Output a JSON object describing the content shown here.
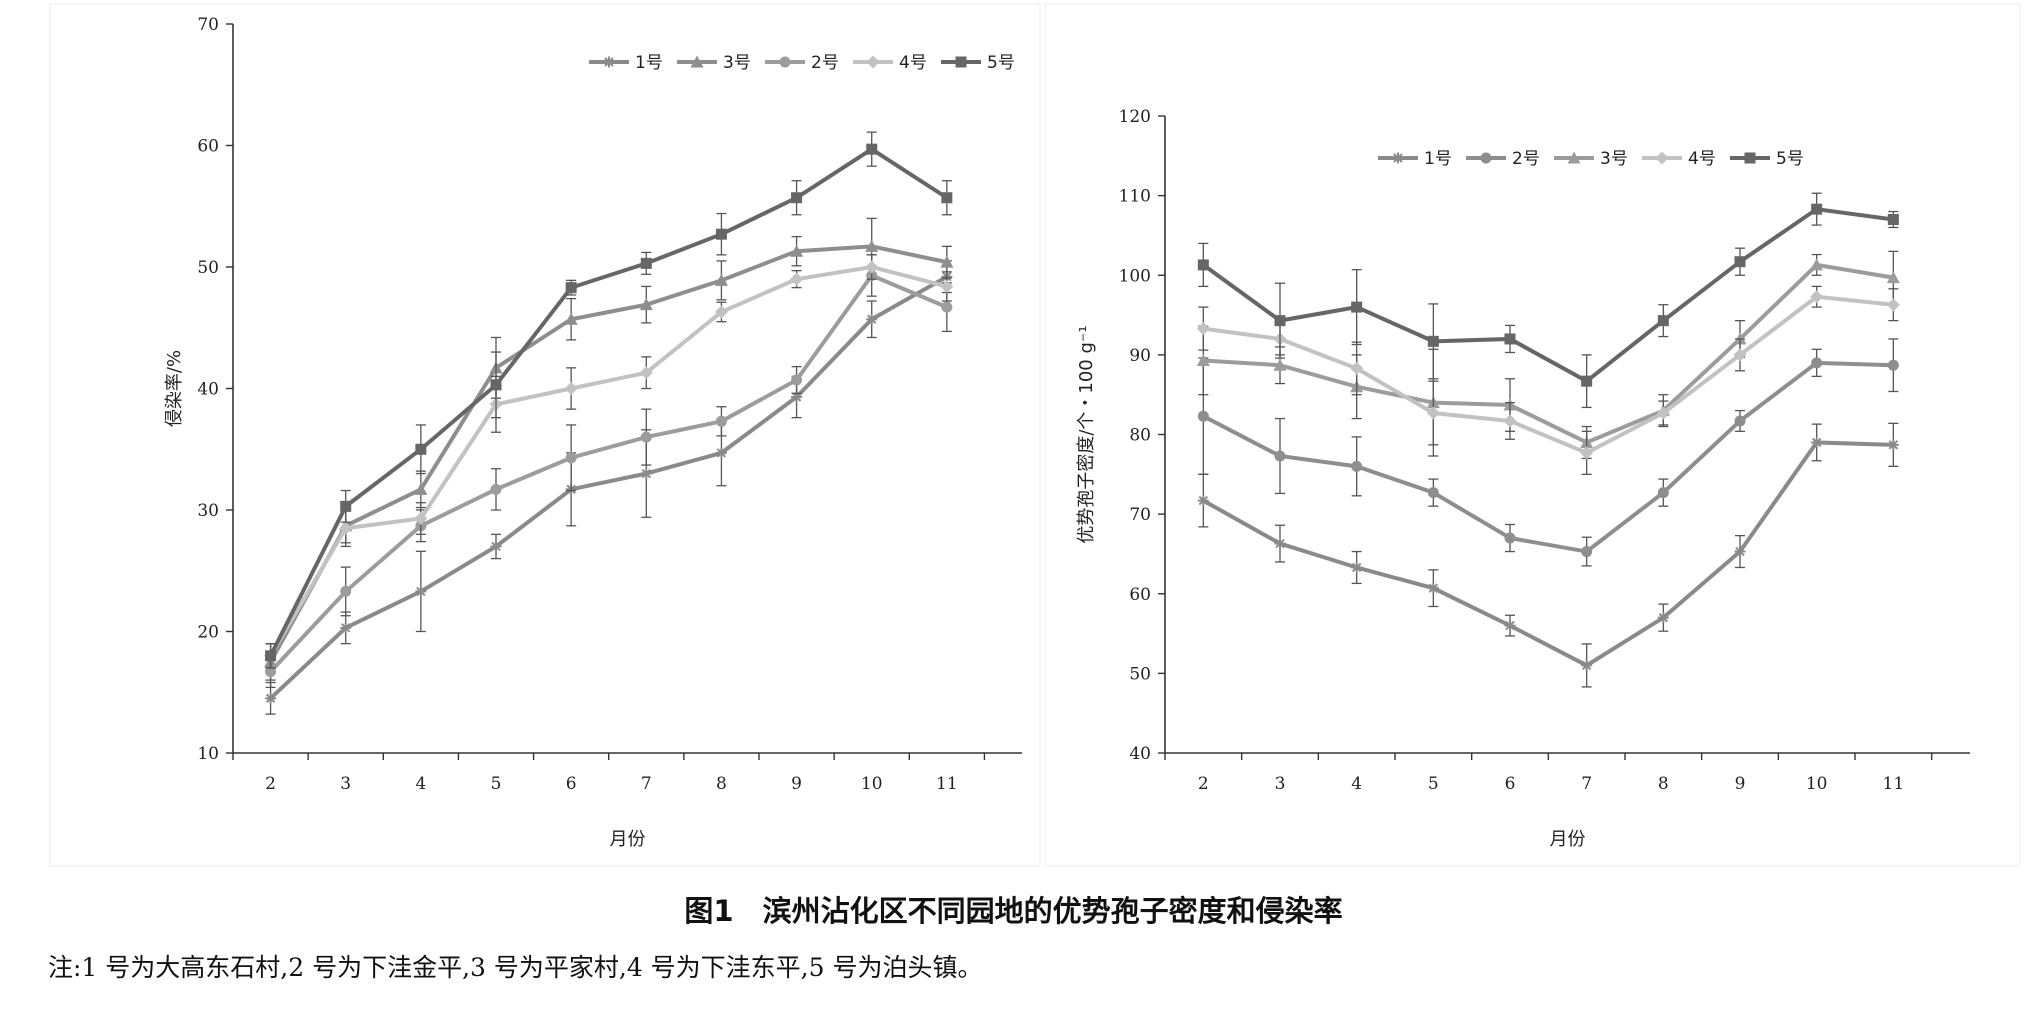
{
  "figure": {
    "caption": "图1　滨州沾化区不同园地的优势孢子密度和侵染率",
    "note": "注:1 号为大高东石村,2 号为下洼金平,3 号为平家村,4 号为下洼东平,5 号为泊头镇。"
  },
  "chart_data": [
    {
      "type": "line",
      "title": "",
      "xlabel": "月份",
      "ylabel": "侵染率/%",
      "ylim": [
        10,
        70
      ],
      "yticks": [
        10,
        20,
        30,
        40,
        50,
        60,
        70
      ],
      "x": [
        2,
        3,
        4,
        5,
        6,
        7,
        8,
        9,
        10,
        11
      ],
      "legend_position": "top-right",
      "series": [
        {
          "name": "1号",
          "marker": "star",
          "color": "#8a8a8a",
          "values": [
            14.5,
            20.3,
            23.3,
            27.0,
            31.7,
            33.0,
            34.7,
            39.3,
            45.7,
            49.2
          ],
          "errors": [
            1.3,
            1.3,
            3.3,
            1.0,
            3.0,
            3.6,
            2.7,
            1.7,
            1.5,
            1.3
          ]
        },
        {
          "name": "3号",
          "marker": "triangle",
          "color": "#8e8e8e",
          "values": [
            17.5,
            28.7,
            31.7,
            41.7,
            45.7,
            46.9,
            48.9,
            51.3,
            51.7,
            50.4
          ],
          "errors": [
            1.5,
            1.4,
            1.5,
            2.5,
            1.7,
            1.5,
            1.6,
            1.2,
            2.3,
            1.3
          ]
        },
        {
          "name": "2号",
          "marker": "circle",
          "color": "#9c9c9c",
          "values": [
            16.7,
            23.3,
            28.7,
            31.7,
            34.3,
            36.0,
            37.3,
            40.7,
            49.3,
            46.7
          ],
          "errors": [
            1.3,
            2.0,
            1.3,
            1.7,
            2.7,
            2.3,
            1.2,
            1.1,
            1.7,
            2.0
          ]
        },
        {
          "name": "4号",
          "marker": "diamond",
          "color": "#c2c2c2",
          "values": [
            18.0,
            28.5,
            29.3,
            38.7,
            40.0,
            41.3,
            46.3,
            49.0,
            50.0,
            48.4
          ],
          "errors": [
            1.0,
            1.5,
            1.3,
            2.3,
            1.7,
            1.3,
            0.8,
            0.7,
            1.0,
            1.2
          ]
        },
        {
          "name": "5号",
          "marker": "square",
          "color": "#666666",
          "values": [
            18.0,
            30.3,
            35.0,
            40.3,
            48.3,
            50.3,
            52.7,
            55.7,
            59.7,
            55.7
          ],
          "errors": [
            1.0,
            1.3,
            2.0,
            2.7,
            0.6,
            0.9,
            1.7,
            1.4,
            1.4,
            1.4
          ]
        }
      ]
    },
    {
      "type": "line",
      "title": "",
      "xlabel": "月份",
      "ylabel": "优势孢子密度/个・100 g⁻¹",
      "ylim": [
        40,
        120
      ],
      "yticks": [
        40,
        50,
        60,
        70,
        80,
        90,
        100,
        110,
        120
      ],
      "x": [
        2,
        3,
        4,
        5,
        6,
        7,
        8,
        9,
        10,
        11
      ],
      "legend_position": "top-left",
      "series": [
        {
          "name": "1号",
          "marker": "star",
          "color": "#8a8a8a",
          "values": [
            71.7,
            66.3,
            63.3,
            60.7,
            56.0,
            51.0,
            57.0,
            65.3,
            79.0,
            78.7
          ],
          "errors": [
            3.3,
            2.3,
            2.0,
            2.3,
            1.3,
            2.7,
            1.7,
            2.0,
            2.3,
            2.7
          ]
        },
        {
          "name": "2号",
          "marker": "circle",
          "color": "#8e8e8e",
          "values": [
            82.3,
            77.3,
            76.0,
            72.7,
            67.0,
            65.3,
            72.7,
            81.7,
            89.0,
            88.7
          ],
          "errors": [
            7.3,
            4.7,
            3.7,
            1.7,
            1.7,
            1.8,
            1.7,
            1.3,
            1.7,
            3.3
          ]
        },
        {
          "name": "3号",
          "marker": "triangle",
          "color": "#9c9c9c",
          "values": [
            89.3,
            88.7,
            86.0,
            84.0,
            83.7,
            79.0,
            83.0,
            92.0,
            101.3,
            99.7
          ],
          "errors": [
            4.3,
            2.3,
            4.0,
            6.7,
            3.3,
            2.0,
            2.0,
            2.3,
            1.3,
            3.3
          ]
        },
        {
          "name": "4号",
          "marker": "diamond",
          "color": "#c2c2c2",
          "values": [
            93.3,
            92.0,
            88.3,
            82.7,
            81.7,
            77.7,
            82.7,
            90.0,
            97.3,
            96.3
          ],
          "errors": [
            2.7,
            2.0,
            3.3,
            4.0,
            2.3,
            2.7,
            1.5,
            2.0,
            1.3,
            2.0
          ]
        },
        {
          "name": "5号",
          "marker": "square",
          "color": "#666666",
          "values": [
            101.3,
            94.3,
            96.0,
            91.7,
            92.0,
            86.7,
            94.3,
            101.7,
            108.3,
            107.0
          ],
          "errors": [
            2.7,
            4.7,
            4.7,
            4.7,
            1.7,
            3.3,
            2.0,
            1.7,
            2.0,
            1.0
          ]
        }
      ]
    }
  ]
}
